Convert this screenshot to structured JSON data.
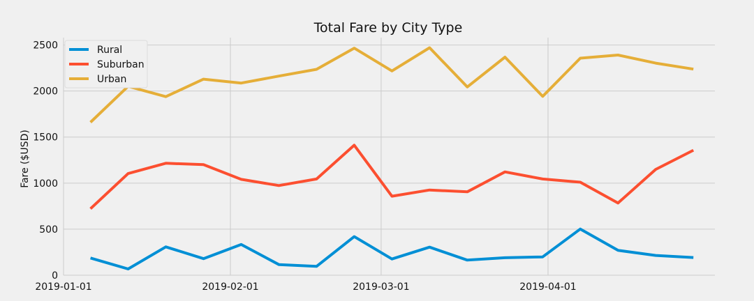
{
  "chart_data": {
    "type": "line",
    "title": "Total Fare by City Type",
    "xlabel": "",
    "ylabel": "Fare ($USD)",
    "x": [
      "2019-01-06",
      "2019-01-13",
      "2019-01-20",
      "2019-01-27",
      "2019-02-03",
      "2019-02-10",
      "2019-02-17",
      "2019-02-24",
      "2019-03-03",
      "2019-03-10",
      "2019-03-17",
      "2019-03-24",
      "2019-03-31",
      "2019-04-07",
      "2019-04-14",
      "2019-04-21",
      "2019-04-28"
    ],
    "xlim": [
      "2019-01-01",
      "2019-05-02"
    ],
    "ylim": [
      0,
      2580
    ],
    "x_ticks": [
      "2019-01-01",
      "2019-02-01",
      "2019-03-01",
      "2019-04-01"
    ],
    "y_ticks": [
      0,
      500,
      1000,
      1500,
      2000,
      2500
    ],
    "grid": true,
    "legend": "top-left",
    "series": [
      {
        "name": "Rural",
        "color": "#008fd5",
        "values": [
          187,
          68,
          308,
          180,
          334,
          116,
          96,
          419,
          176,
          305,
          164,
          190,
          199,
          502,
          270,
          215,
          192
        ]
      },
      {
        "name": "Suburban",
        "color": "#fc4f30",
        "values": [
          722,
          1104,
          1216,
          1201,
          1041,
          974,
          1045,
          1412,
          858,
          925,
          906,
          1122,
          1045,
          1010,
          784,
          1149,
          1357
        ]
      },
      {
        "name": "Urban",
        "color": "#e5ae38",
        "values": [
          1661,
          2051,
          1939,
          2129,
          2087,
          2162,
          2236,
          2466,
          2218,
          2470,
          2044,
          2368,
          1942,
          2357,
          2391,
          2303,
          2238
        ]
      }
    ]
  }
}
